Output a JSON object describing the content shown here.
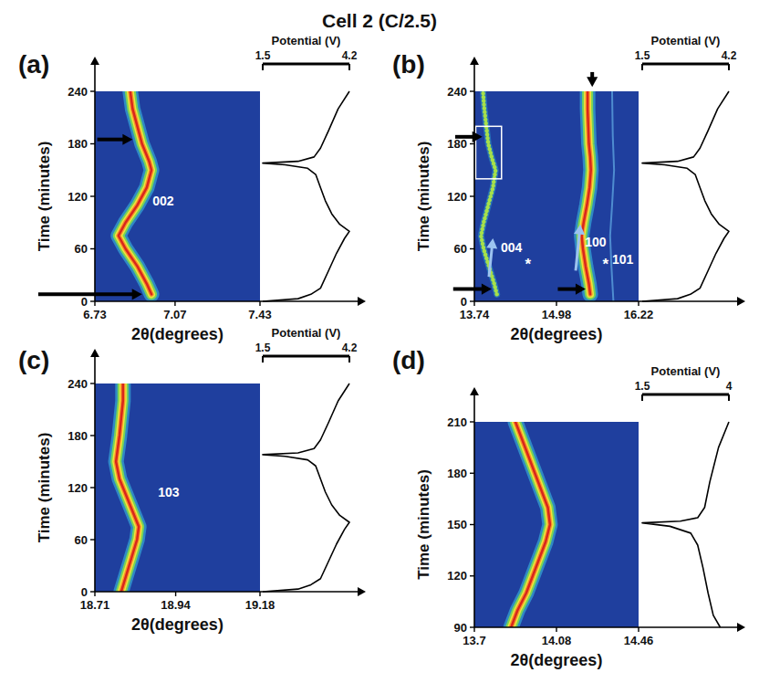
{
  "title": "Cell 2 (C/2.5)",
  "chart_data": [
    {
      "type": "heatmap",
      "title": "(a)",
      "xlabel": "2θ(degrees)",
      "ylabel": "Time (minutes)",
      "xlim": [
        6.73,
        7.43
      ],
      "xticks": [
        6.73,
        7.07,
        7.43
      ],
      "ylim": [
        0,
        240
      ],
      "yticks": [
        0,
        60,
        120,
        180,
        240
      ],
      "series": [
        {
          "line_style": "solid",
          "x": [
            6.97,
            6.95,
            6.91,
            6.86,
            6.83,
            6.86,
            6.91,
            6.95,
            6.97,
            6.96,
            6.93,
            6.91,
            6.89,
            6.88
          ],
          "values": [
            8,
            20,
            40,
            60,
            75,
            90,
            110,
            130,
            150,
            160,
            180,
            200,
            220,
            240
          ]
        }
      ],
      "annotations": [
        {
          "text": "002",
          "x": 7.02,
          "y": 115
        }
      ],
      "arrows": [
        {
          "x": [
            6.74,
            6.89
          ],
          "y": [
            185,
            185
          ],
          "color": "black"
        },
        {
          "x": [
            6.49,
            6.93
          ],
          "y": [
            8,
            8
          ],
          "color": "black"
        }
      ],
      "potential": {
        "type": "line",
        "xlabel": "Potential (V)",
        "xlim": [
          1.5,
          4.2
        ],
        "xticks": [
          1.5,
          4.2
        ],
        "x": [
          1.5,
          2.6,
          3.0,
          3.3,
          3.55,
          3.8,
          4.05,
          4.2,
          3.9,
          3.65,
          3.45,
          3.3,
          3.15,
          2.9,
          2.2,
          1.5,
          2.6,
          3.1,
          3.3,
          3.55,
          3.85,
          4.2
        ],
        "values": [
          0,
          3,
          8,
          15,
          35,
          55,
          72,
          80,
          88,
          100,
          115,
          130,
          145,
          152,
          156,
          158,
          160,
          165,
          175,
          195,
          220,
          240
        ]
      }
    },
    {
      "type": "heatmap",
      "title": "(b)",
      "xlabel": "2θ(degrees)",
      "ylabel": "Time (minutes)",
      "xlim": [
        13.74,
        16.22
      ],
      "xticks": [
        13.74,
        14.98,
        16.22
      ],
      "ylim": [
        0,
        240
      ],
      "yticks": [
        0,
        60,
        120,
        180,
        240
      ],
      "series": [
        {
          "line_style": "dotted",
          "x": [
            14.08,
            14.04,
            13.96,
            13.88,
            13.84,
            13.88,
            13.95,
            14.02,
            14.06,
            14.0,
            13.95,
            13.92,
            13.89,
            13.87
          ],
          "values": [
            8,
            20,
            40,
            60,
            75,
            90,
            110,
            130,
            150,
            165,
            180,
            200,
            220,
            240
          ]
        },
        {
          "line_style": "solid",
          "x": [
            15.49,
            15.47,
            15.42,
            15.38,
            15.36,
            15.39,
            15.44,
            15.48,
            15.5,
            15.49,
            15.47,
            15.46,
            15.45,
            15.45
          ],
          "values": [
            8,
            20,
            40,
            60,
            75,
            90,
            110,
            130,
            150,
            165,
            180,
            200,
            220,
            240
          ]
        },
        {
          "line_style": "thin",
          "x": [
            15.84,
            15.81,
            15.79,
            15.82,
            15.85,
            15.83,
            15.82
          ],
          "values": [
            0,
            40,
            75,
            110,
            150,
            190,
            240
          ]
        }
      ],
      "annotations": [
        {
          "text": "004",
          "x": 14.3,
          "y": 62
        },
        {
          "text": "100",
          "x": 15.57,
          "y": 68
        },
        {
          "text": "101",
          "x": 15.98,
          "y": 48
        },
        {
          "text": "*",
          "x": 14.55,
          "y": 42
        },
        {
          "text": "*",
          "x": 15.72,
          "y": 42
        }
      ],
      "arrows": [
        {
          "x": [
            13.45,
            13.86
          ],
          "y": [
            188,
            188
          ],
          "color": "black"
        },
        {
          "x": [
            13.42,
            14.0
          ],
          "y": [
            14,
            14
          ],
          "color": "black"
        },
        {
          "x": [
            15.0,
            15.42
          ],
          "y": [
            14,
            14
          ],
          "color": "black"
        },
        {
          "x": [
            15.52,
            15.52
          ],
          "y": [
            262,
            245
          ],
          "color": "black"
        },
        {
          "x": [
            13.96,
            14.02
          ],
          "y": [
            28,
            72
          ],
          "color": "#9cc3f0"
        },
        {
          "x": [
            15.27,
            15.34
          ],
          "y": [
            35,
            88
          ],
          "color": "#9cc3f0"
        }
      ],
      "box": {
        "x": [
          13.76,
          14.15
        ],
        "y": [
          140,
          200
        ],
        "color": "white"
      },
      "potential": {
        "type": "line",
        "xlabel": "Potential (V)",
        "xlim": [
          1.5,
          4.2
        ],
        "xticks": [
          1.5,
          4.2
        ],
        "x": [
          1.5,
          2.6,
          3.0,
          3.3,
          3.55,
          3.8,
          4.05,
          4.2,
          3.9,
          3.65,
          3.45,
          3.3,
          3.15,
          2.9,
          2.2,
          1.5,
          2.6,
          3.1,
          3.3,
          3.55,
          3.85,
          4.2
        ],
        "values": [
          0,
          3,
          8,
          15,
          35,
          55,
          72,
          80,
          88,
          100,
          115,
          130,
          145,
          152,
          156,
          158,
          160,
          165,
          175,
          195,
          220,
          240
        ]
      }
    },
    {
      "type": "heatmap",
      "title": "(c)",
      "xlabel": "2θ(degrees)",
      "ylabel": "Time (minutes)",
      "xlim": [
        18.71,
        19.18
      ],
      "xticks": [
        18.71,
        18.94,
        19.18
      ],
      "ylim": [
        0,
        240
      ],
      "yticks": [
        0,
        60,
        120,
        180,
        240
      ],
      "series": [
        {
          "line_style": "solid",
          "x": [
            18.785,
            18.8,
            18.815,
            18.83,
            18.835,
            18.82,
            18.8,
            18.78,
            18.77,
            18.775,
            18.78,
            18.785,
            18.79,
            18.79
          ],
          "values": [
            0,
            20,
            40,
            60,
            75,
            90,
            110,
            130,
            150,
            165,
            180,
            200,
            220,
            240
          ]
        }
      ],
      "annotations": [
        {
          "text": "103",
          "x": 18.92,
          "y": 115
        }
      ],
      "potential": {
        "type": "line",
        "xlabel": "Potential (V)",
        "xlim": [
          1.5,
          4.2
        ],
        "xticks": [
          1.5,
          4.2
        ],
        "x": [
          1.5,
          2.6,
          3.0,
          3.3,
          3.55,
          3.8,
          4.05,
          4.2,
          3.9,
          3.65,
          3.45,
          3.3,
          3.15,
          2.9,
          2.2,
          1.5,
          2.6,
          3.1,
          3.3,
          3.55,
          3.85,
          4.2
        ],
        "values": [
          0,
          3,
          8,
          15,
          35,
          55,
          72,
          80,
          88,
          100,
          115,
          130,
          145,
          152,
          156,
          158,
          160,
          165,
          175,
          195,
          220,
          240
        ]
      }
    },
    {
      "type": "heatmap",
      "title": "(d)",
      "xlabel": "2θ(degrees)",
      "ylabel": "Time (minutes)",
      "xlim": [
        13.7,
        14.46
      ],
      "xticks": [
        13.7,
        14.08,
        14.46
      ],
      "ylim": [
        90,
        210
      ],
      "yticks": [
        90,
        120,
        150,
        180,
        210
      ],
      "series": [
        {
          "line_style": "solid",
          "x": [
            13.87,
            13.9,
            13.94,
            13.97,
            14.0,
            14.03,
            14.05,
            14.04,
            14.01,
            13.98,
            13.95,
            13.92,
            13.89
          ],
          "values": [
            90,
            100,
            110,
            120,
            130,
            140,
            150,
            160,
            170,
            180,
            190,
            200,
            210
          ]
        }
      ],
      "potential": {
        "type": "line",
        "xlabel": "Potential (V)",
        "xlim": [
          1.5,
          4.0
        ],
        "xticks": [
          1.5,
          4.0
        ],
        "x": [
          3.75,
          3.55,
          3.4,
          3.25,
          3.1,
          2.9,
          2.3,
          1.5,
          2.6,
          3.1,
          3.3,
          3.45,
          3.7,
          4.0
        ],
        "values": [
          90,
          97,
          110,
          125,
          138,
          145,
          149,
          151,
          152,
          154,
          160,
          175,
          195,
          210
        ]
      }
    }
  ]
}
